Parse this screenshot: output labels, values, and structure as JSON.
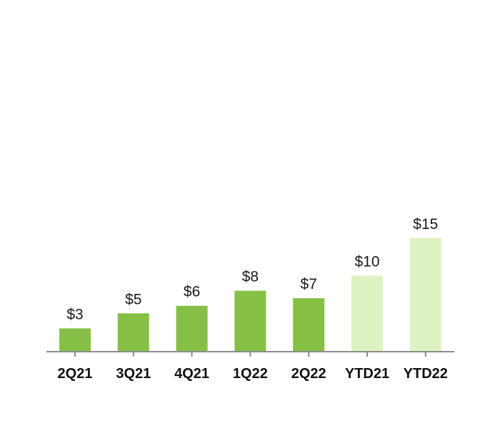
{
  "chart_data": {
    "type": "bar",
    "categories": [
      "2Q21",
      "3Q21",
      "4Q21",
      "1Q22",
      "2Q22",
      "YTD21",
      "YTD22"
    ],
    "values": [
      3,
      5,
      6,
      8,
      7,
      10,
      15
    ],
    "value_labels": [
      "$3",
      "$5",
      "$6",
      "$8",
      "$7",
      "$10",
      "$15"
    ],
    "bar_colors": [
      "#86bf45",
      "#86bf45",
      "#86bf45",
      "#86bf45",
      "#86bf45",
      "#def2c1",
      "#def2c1"
    ],
    "title": "",
    "xlabel": "",
    "ylabel": "",
    "ylim": [
      0,
      15
    ],
    "grid": false,
    "legend": "none"
  },
  "colors": {
    "quarter_bar": "#86bf45",
    "ytd_bar": "#def2c1",
    "axis": "#8c8c8c"
  }
}
